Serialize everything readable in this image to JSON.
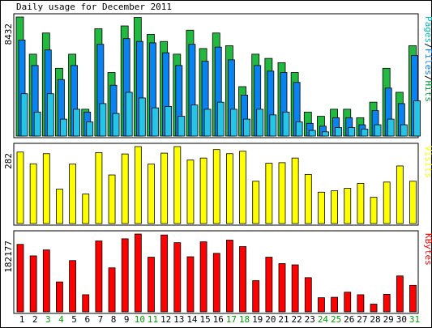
{
  "title": "Daily usage for December 2011",
  "colors": {
    "hits": "#00805c",
    "hits_fill": "#21b93f",
    "files_fill": "#0a83f2",
    "pages_fill": "#26c5e8",
    "visits_fill": "#ffff00",
    "kbytes_fill": "#ff0000",
    "weekend_label": "#00a000",
    "label_hits": "#00a040",
    "label_files": "#0080ff",
    "label_pages": "#00c0c0",
    "label_visits": "#ffff00",
    "label_kbytes": "#ff0000"
  },
  "chart_data": {
    "type": "bar",
    "title": "Daily usage for December 2011",
    "categories": [
      "1",
      "2",
      "3",
      "4",
      "5",
      "6",
      "7",
      "8",
      "9",
      "10",
      "11",
      "12",
      "13",
      "14",
      "15",
      "16",
      "17",
      "18",
      "19",
      "20",
      "21",
      "22",
      "23",
      "24",
      "25",
      "26",
      "27",
      "28",
      "29",
      "30",
      "31"
    ],
    "weekend_days": [
      "3",
      "4",
      "10",
      "11",
      "17",
      "18",
      "24",
      "25",
      "31"
    ],
    "panels": [
      {
        "name": "hits-files-pages",
        "max_label": "8432",
        "ymax": 8432,
        "legend": [
          "Pages",
          "Files",
          "Hits"
        ],
        "series": [
          {
            "name": "Hits",
            "values": [
              8432,
              5800,
              7300,
              4800,
              5800,
              1900,
              7600,
              4500,
              7800,
              8400,
              7200,
              6700,
              5800,
              7500,
              6200,
              7300,
              6400,
              3500,
              5800,
              5500,
              5200,
              4500,
              1700,
              1400,
              1900,
              1900,
              1300,
              2400,
              4800,
              3100,
              6400
            ]
          },
          {
            "name": "Files",
            "values": [
              6800,
              5000,
              6100,
              4000,
              5000,
              1700,
              6500,
              3600,
              6900,
              6700,
              6600,
              5900,
              5000,
              6500,
              5300,
              6300,
              5400,
              2900,
              5000,
              4600,
              4500,
              3800,
              900,
              700,
              1300,
              1300,
              800,
              1800,
              3400,
              2300,
              5700
            ]
          },
          {
            "name": "Pages",
            "values": [
              3000,
              1700,
              3000,
              1200,
              1900,
              1000,
              2300,
              1600,
              3100,
              2700,
              2000,
              2100,
              1400,
              2200,
              1900,
              2400,
              1900,
              1200,
              1900,
              1500,
              1700,
              1000,
              400,
              300,
              600,
              600,
              500,
              800,
              1200,
              800,
              2500
            ]
          }
        ]
      },
      {
        "name": "visits",
        "max_label": "282",
        "ymax": 282,
        "legend": [
          "Visits"
        ],
        "series": [
          {
            "name": "Visits",
            "values": [
              262,
              219,
              256,
              126,
              218,
              108,
              260,
              178,
              255,
              282,
              218,
              258,
              282,
              233,
              240,
              271,
              256,
              265,
              155,
              221,
              223,
              240,
              180,
              115,
              120,
              129,
              147,
              96,
              152,
              211,
              155
            ]
          }
        ]
      },
      {
        "name": "kbytes",
        "max_label": "182177",
        "ymax": 182177,
        "legend": [
          "KBytes"
        ],
        "series": [
          {
            "name": "KBytes",
            "values": [
              158000,
              131000,
              145000,
              70000,
              120000,
              40000,
              166000,
              103000,
              171000,
              182177,
              128000,
              180000,
              162000,
              129000,
              164000,
              137000,
              168000,
              153000,
              73000,
              128000,
              113000,
              110000,
              80000,
              33000,
              34000,
              46000,
              40000,
              18000,
              41000,
              84000,
              62000
            ]
          }
        ]
      }
    ]
  }
}
